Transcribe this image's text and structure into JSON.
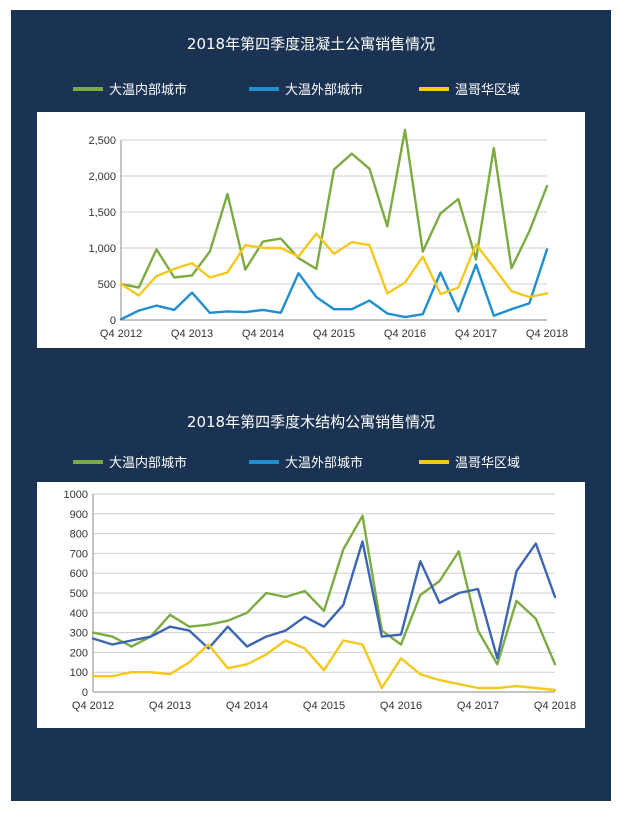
{
  "colors": {
    "background": "#1b3352",
    "plot_background": "#ffffff",
    "inner": "#7cab42",
    "outer_chart1": "#1f8fd0",
    "outer_chart2": "#3c66b3",
    "vancouver": "#f4c81c",
    "grid": "#cfcfcf"
  },
  "legend": [
    {
      "label": "大温内部城市",
      "color": "#7cab42"
    },
    {
      "label": "大温外部城市",
      "color": "#1f8fd0"
    },
    {
      "label": "温哥华区域",
      "color": "#f4c81c"
    }
  ],
  "chart_data": [
    {
      "type": "line",
      "title": "2018年第四季度混凝土公寓销售情况",
      "xlabel": "",
      "ylabel": "",
      "ylim": [
        0,
        2500
      ],
      "yticks": [
        0,
        500,
        1000,
        1500,
        2000,
        2500
      ],
      "ytick_labels": [
        "0",
        "500",
        "1,000",
        "1,500",
        "2,000",
        "2,500"
      ],
      "xtick_labels": [
        "Q4 2012",
        "Q4 2013",
        "Q4 2014",
        "Q4 2015",
        "Q4 2016",
        "Q4 2017",
        "Q4 2018"
      ],
      "xtick_index": [
        0,
        4,
        8,
        12,
        16,
        20,
        24
      ],
      "grid": true,
      "legend_position": "top",
      "series": [
        {
          "name": "大温内部城市",
          "color": "#7cab42",
          "values": [
            500,
            450,
            980,
            590,
            620,
            950,
            1750,
            700,
            1090,
            1130,
            860,
            710,
            2090,
            2310,
            2100,
            1300,
            2640,
            950,
            1480,
            1680,
            840,
            2390,
            720,
            1230,
            1860
          ]
        },
        {
          "name": "大温外部城市",
          "color": "#1f8fd0",
          "values": [
            10,
            130,
            200,
            140,
            380,
            100,
            120,
            110,
            140,
            100,
            650,
            320,
            150,
            150,
            270,
            90,
            40,
            80,
            660,
            120,
            770,
            60,
            150,
            230,
            980
          ]
        },
        {
          "name": "温哥华区域",
          "color": "#f4c81c",
          "values": [
            500,
            340,
            610,
            710,
            790,
            590,
            660,
            1040,
            1000,
            1000,
            880,
            1200,
            920,
            1080,
            1040,
            370,
            520,
            880,
            360,
            450,
            1050,
            730,
            400,
            320,
            370
          ]
        }
      ]
    },
    {
      "type": "line",
      "title": "2018年第四季度木结构公寓销售情况",
      "xlabel": "",
      "ylabel": "",
      "ylim": [
        0,
        1000
      ],
      "yticks": [
        0,
        100,
        200,
        300,
        400,
        500,
        600,
        700,
        800,
        900,
        1000
      ],
      "ytick_labels": [
        "0",
        "100",
        "200",
        "300",
        "400",
        "500",
        "600",
        "700",
        "800",
        "900",
        "1000"
      ],
      "xtick_labels": [
        "Q4 2012",
        "Q4 2013",
        "Q4 2014",
        "Q4 2015",
        "Q4 2016",
        "Q4 2017",
        "Q4 2018"
      ],
      "xtick_index": [
        0,
        4,
        8,
        12,
        16,
        20,
        24
      ],
      "grid": true,
      "legend_position": "top",
      "series": [
        {
          "name": "大温内部城市",
          "color": "#7cab42",
          "values": [
            300,
            280,
            230,
            280,
            390,
            330,
            340,
            360,
            400,
            500,
            480,
            510,
            410,
            720,
            890,
            310,
            240,
            490,
            560,
            710,
            310,
            140,
            460,
            370,
            140
          ]
        },
        {
          "name": "大温外部城市",
          "color": "#3c66b3",
          "values": [
            270,
            240,
            260,
            280,
            330,
            310,
            220,
            330,
            230,
            280,
            310,
            380,
            330,
            440,
            760,
            280,
            290,
            660,
            450,
            500,
            520,
            170,
            610,
            750,
            480
          ]
        },
        {
          "name": "温哥华区域",
          "color": "#f4c81c",
          "values": [
            80,
            80,
            100,
            100,
            90,
            150,
            240,
            120,
            140,
            190,
            260,
            220,
            110,
            260,
            240,
            20,
            170,
            90,
            60,
            40,
            20,
            20,
            30,
            20,
            10
          ]
        }
      ]
    }
  ]
}
